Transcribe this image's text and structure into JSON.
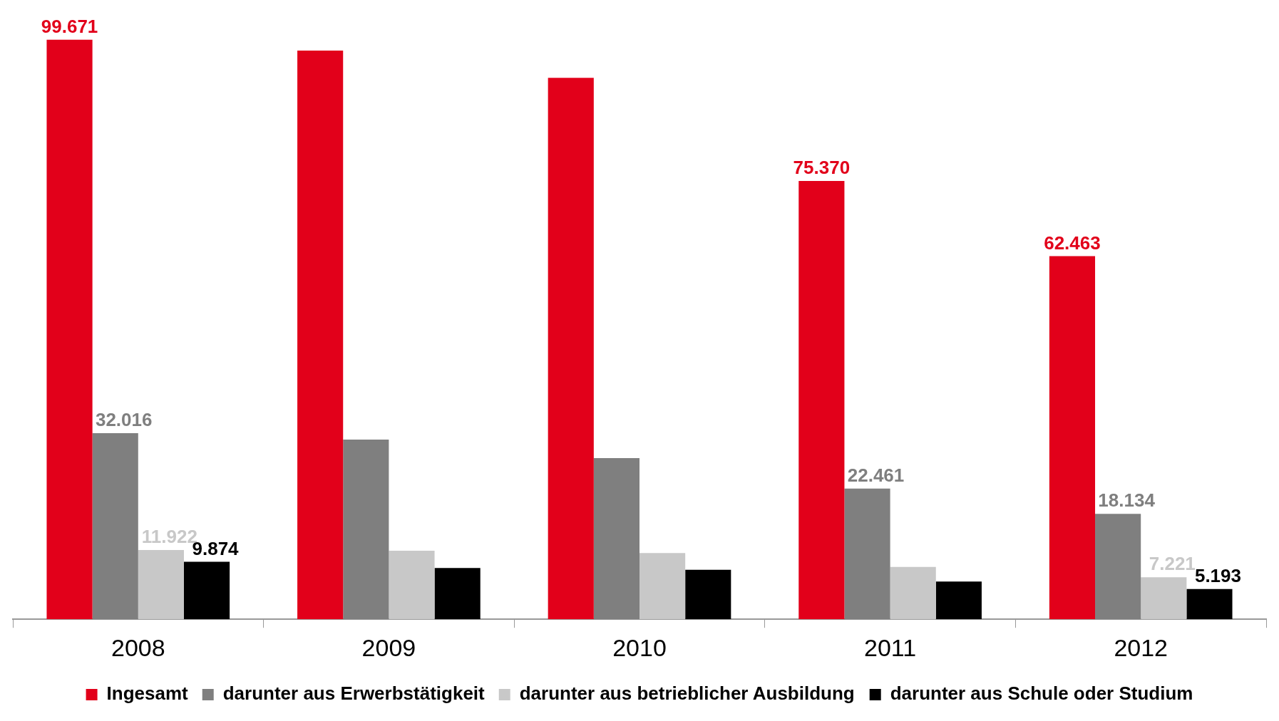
{
  "chart_data": {
    "type": "bar",
    "categories": [
      "2008",
      "2009",
      "2010",
      "2011",
      "2012"
    ],
    "legend": "bottom",
    "series": [
      {
        "name": "Ingesamt",
        "color": "#e2001a",
        "values": [
          99671,
          97800,
          93100,
          75370,
          62463
        ],
        "value_labels": [
          "99.671",
          null,
          null,
          "75.370",
          "62.463"
        ]
      },
      {
        "name": "darunter aus Erwerbstätigkeit",
        "color": "#7f7f7f",
        "values": [
          32016,
          30900,
          27700,
          22461,
          18134
        ],
        "value_labels": [
          "32.016",
          null,
          null,
          "22.461",
          "18.134"
        ]
      },
      {
        "name": "darunter aus betrieblicher Ausbildung",
        "color": "#c8c8c8",
        "values": [
          11922,
          11800,
          11400,
          9000,
          7221
        ],
        "value_labels": [
          "11.922",
          null,
          null,
          null,
          "7.221"
        ]
      },
      {
        "name": "darunter aus Schule oder Studium",
        "color": "#000000",
        "values": [
          9874,
          8800,
          8500,
          6500,
          5193
        ],
        "value_labels": [
          "9.874",
          null,
          null,
          null,
          "5.193"
        ]
      }
    ]
  }
}
